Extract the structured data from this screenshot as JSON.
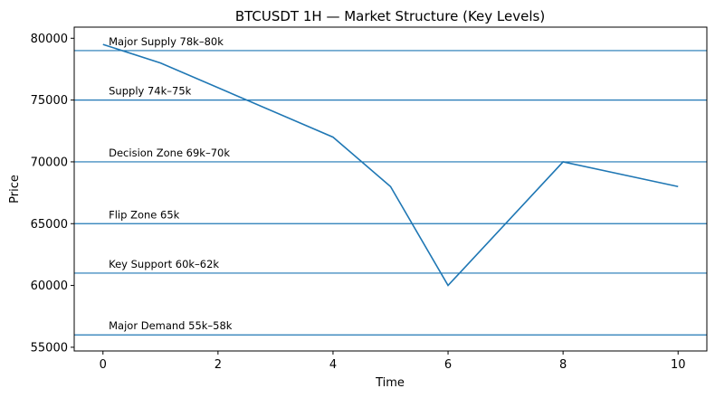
{
  "chart_data": {
    "type": "line",
    "title": "BTCUSDT 1H — Market Structure (Key Levels)",
    "x_label": "Time",
    "y_label": "Price",
    "x": [
      0,
      1,
      4,
      5,
      6,
      8,
      10
    ],
    "series": [
      {
        "name": "BTCUSDT",
        "color": "#1f77b4",
        "values": [
          79500,
          78000,
          72000,
          68000,
          60000,
          70000,
          68000
        ]
      }
    ],
    "levels": [
      {
        "value": 79000,
        "label": "Major Supply 78k–80k"
      },
      {
        "value": 75000,
        "label": "Supply 74k–75k"
      },
      {
        "value": 70000,
        "label": "Decision Zone 69k–70k"
      },
      {
        "value": 65000,
        "label": "Flip Zone 65k"
      },
      {
        "value": 61000,
        "label": "Key Support 60k–62k"
      },
      {
        "value": 56000,
        "label": "Major Demand 55k–58k"
      }
    ],
    "xlim": [
      -0.5,
      10.5
    ],
    "ylim": [
      54700,
      80900
    ],
    "xticks": [
      0,
      2,
      4,
      6,
      8,
      10
    ],
    "yticks": [
      55000,
      60000,
      65000,
      70000,
      75000,
      80000
    ]
  }
}
